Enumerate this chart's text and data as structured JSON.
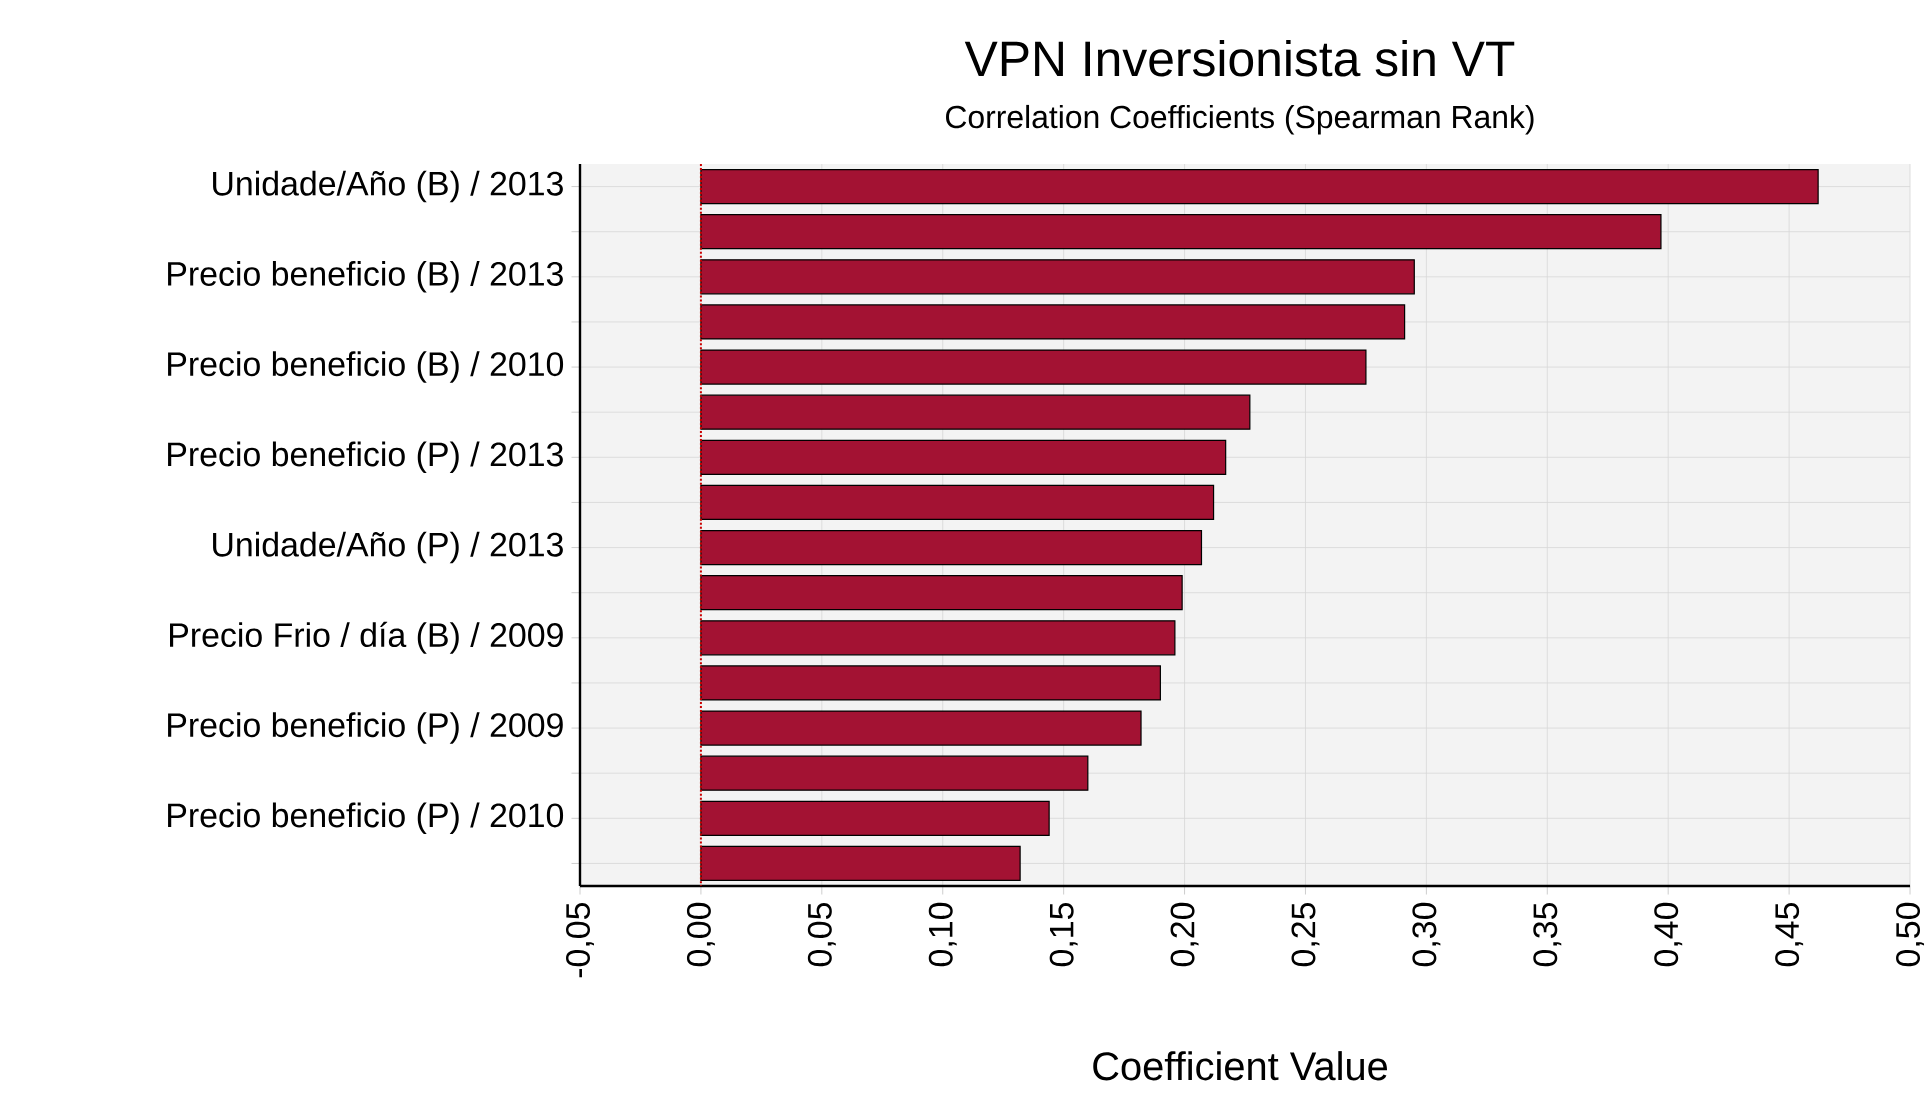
{
  "chart_data": {
    "type": "bar",
    "orientation": "horizontal",
    "title": "VPN Inversionista sin VT",
    "subtitle": "Correlation Coefficients (Spearman Rank)",
    "xlabel": "Coefficient Value",
    "categories": [
      "Unidade/Año (B) / 2013",
      null,
      "Precio beneficio (B) / 2013",
      null,
      "Precio beneficio (B) / 2010",
      null,
      "Precio beneficio (P) / 2013",
      null,
      "Unidade/Año (P) / 2013",
      null,
      "Precio Frio / día (B) / 2009",
      null,
      "Precio beneficio (P) / 2009",
      null,
      "Precio beneficio (P) / 2010",
      null
    ],
    "values": [
      0.462,
      0.397,
      0.295,
      0.291,
      0.275,
      0.227,
      0.217,
      0.212,
      0.207,
      0.199,
      0.196,
      0.19,
      0.182,
      0.16,
      0.144,
      0.132
    ],
    "color": "#a31233",
    "xlim": [
      -0.05,
      0.5
    ],
    "xticks": [
      {
        "value": -0.05,
        "label": "-0,05"
      },
      {
        "value": 0,
        "label": "0,00"
      },
      {
        "value": 0.05,
        "label": "0,05"
      },
      {
        "value": 0.1,
        "label": "0,10"
      },
      {
        "value": 0.15,
        "label": "0,15"
      },
      {
        "value": 0.2,
        "label": "0,20"
      },
      {
        "value": 0.25,
        "label": "0,25"
      },
      {
        "value": 0.3,
        "label": "0,30"
      },
      {
        "value": 0.35,
        "label": "0,35"
      },
      {
        "value": 0.4,
        "label": "0,40"
      },
      {
        "value": 0.45,
        "label": "0,45"
      },
      {
        "value": 0.5,
        "label": "0,50"
      }
    ],
    "ref_lines": [
      {
        "axis": "x",
        "value": 0,
        "color": "#cc0000",
        "line_style": "dotted"
      }
    ],
    "grid": true
  }
}
